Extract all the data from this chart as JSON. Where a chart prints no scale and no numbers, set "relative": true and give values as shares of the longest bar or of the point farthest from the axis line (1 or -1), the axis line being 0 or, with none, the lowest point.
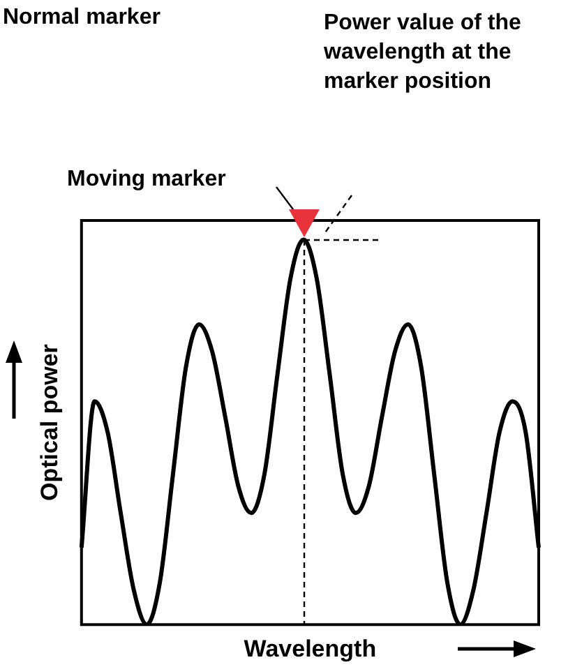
{
  "chart_data": {
    "type": "line",
    "xlabel": "Wavelength",
    "ylabel": "Optical power",
    "annotations": [
      "Normal marker",
      "Power value of the wavelength at the marker position",
      "Moving marker"
    ],
    "categories": [
      null,
      null,
      null,
      null,
      null,
      null,
      null,
      null,
      null,
      null,
      null,
      null,
      null,
      null,
      null,
      null,
      null,
      null,
      null,
      null,
      null,
      null,
      null,
      null,
      null,
      null,
      null,
      null,
      null,
      null,
      null,
      null,
      null,
      null,
      null,
      null
    ],
    "values": [
      0.2,
      0.58,
      0.5,
      0.29,
      0.09,
      0,
      0.11,
      0.39,
      0.67,
      0.78,
      0.71,
      0.54,
      0.36,
      0.29,
      0.39,
      0.65,
      0.9,
      1,
      0.9,
      0.65,
      0.39,
      0.29,
      0.36,
      0.54,
      0.71,
      0.78,
      0.67,
      0.39,
      0.11,
      0,
      0.09,
      0.29,
      0.5,
      0.58,
      0.5,
      0.2
    ],
    "color": "#000000",
    "relative": true,
    "marker": "none"
  }
}
